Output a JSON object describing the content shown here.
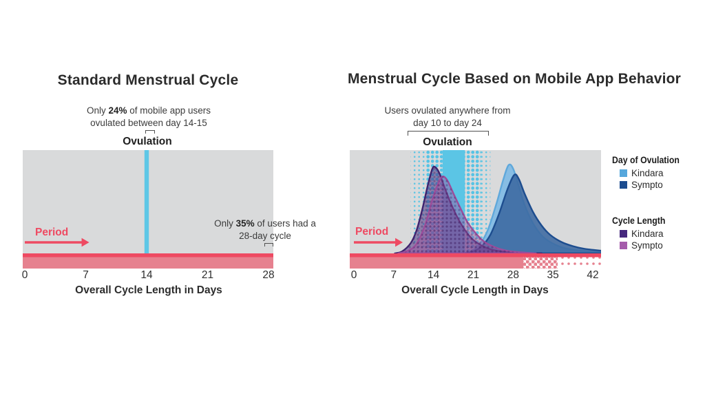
{
  "charts": {
    "left": {
      "title": "Standard Menstrual Cycle",
      "annotation": {
        "l1a": "Only ",
        "l1b": "24%",
        "l1c": " of mobile app users",
        "l2": "ovulated between day 14-15"
      },
      "ovulation_label": "Ovulation",
      "period_label": "Period",
      "note": {
        "l1a": "Only ",
        "l1b": "35%",
        "l1c": " of users had a",
        "l2": "28-day cycle"
      },
      "x_title": "Overall Cycle Length in Days"
    },
    "right": {
      "title": "Menstrual Cycle Based on Mobile App Behavior",
      "annotation": {
        "l1": "Users ovulated anywhere from",
        "l2": "day 10 to day 24"
      },
      "ovulation_label": "Ovulation",
      "period_label": "Period",
      "x_title": "Overall Cycle Length in Days"
    }
  },
  "legend": {
    "groups": [
      {
        "heading": "Day of Ovulation",
        "items": [
          {
            "label": "Kindara",
            "color": "#56a7dc"
          },
          {
            "label": "Sympto",
            "color": "#1d4d8f"
          }
        ]
      },
      {
        "heading": "Cycle Length",
        "items": [
          {
            "label": "Kindara",
            "color": "#46287d"
          },
          {
            "label": "Sympto",
            "color": "#a55cab"
          }
        ]
      }
    ]
  },
  "colors": {
    "plot_bg": "#d9dadb",
    "period_red": "#ee4a62",
    "period_pink": "#e6818f",
    "ovulation_cyan": "#5ec7e6",
    "ovulation_band_cyan": "#3fc0e6",
    "title_text": "#2b2b2b"
  },
  "chart_data": [
    {
      "type": "timeline",
      "title": "Standard Menstrual Cycle",
      "xlabel": "Overall Cycle Length in Days",
      "x_ticks": [
        0,
        7,
        14,
        21,
        28
      ],
      "xlim": [
        0,
        28.5
      ],
      "ovulation_day": 14,
      "period_days": [
        0,
        7.4
      ],
      "cycle_length_days": 28,
      "annotations": [
        "Only 24% of mobile app users ovulated between day 14-15",
        "Only 35% of users had a 28-day cycle"
      ]
    },
    {
      "type": "area",
      "title": "Menstrual Cycle Based on Mobile App Behavior",
      "xlabel": "Overall Cycle Length in Days",
      "x_ticks": [
        0,
        7,
        14,
        21,
        28,
        35,
        42
      ],
      "xlim": [
        0,
        43.5
      ],
      "ovulation_range_days": [
        10,
        24
      ],
      "period_days": [
        0,
        8.6
      ],
      "annotation": "Users ovulated anywhere from day 10 to day 24",
      "legend_position": "right",
      "series": [
        {
          "name": "Day of Ovulation - Kindara",
          "outline": "#5fa8db",
          "fill": "rgba(125,185,228,0.9)",
          "dots": false,
          "points": [
            [
              19,
              0
            ],
            [
              20.5,
              0.02
            ],
            [
              22,
              0.08
            ],
            [
              23.5,
              0.22
            ],
            [
              25,
              0.47
            ],
            [
              26.3,
              0.72
            ],
            [
              27.2,
              0.855
            ],
            [
              28,
              0.82
            ],
            [
              29,
              0.65
            ],
            [
              30,
              0.47
            ],
            [
              31.5,
              0.29
            ],
            [
              33,
              0.175
            ],
            [
              34.5,
              0.11
            ],
            [
              36.5,
              0.06
            ],
            [
              38.5,
              0.035
            ],
            [
              41,
              0.02
            ],
            [
              43.6,
              0.012
            ]
          ]
        },
        {
          "name": "Day of Ovulation - Sympto",
          "outline": "#1d4d8f",
          "fill": "rgba(60,105,160,0.88)",
          "dots": false,
          "points": [
            [
              19.5,
              0
            ],
            [
              21,
              0.02
            ],
            [
              22.5,
              0.07
            ],
            [
              24,
              0.18
            ],
            [
              25.5,
              0.38
            ],
            [
              27,
              0.62
            ],
            [
              28.2,
              0.76
            ],
            [
              29,
              0.72
            ],
            [
              30,
              0.58
            ],
            [
              31.5,
              0.4
            ],
            [
              33,
              0.27
            ],
            [
              34.5,
              0.18
            ],
            [
              36.5,
              0.11
            ],
            [
              38.5,
              0.07
            ],
            [
              40.5,
              0.045
            ],
            [
              43.6,
              0.025
            ]
          ]
        },
        {
          "name": "Cycle Length - Kindara",
          "outline": "#40236f",
          "fill": "rgba(72,42,124,0.52)",
          "dots": true,
          "points": [
            [
              7.2,
              0
            ],
            [
              8.5,
              0.02
            ],
            [
              10,
              0.1
            ],
            [
              11,
              0.22
            ],
            [
              12,
              0.42
            ],
            [
              13,
              0.66
            ],
            [
              13.8,
              0.82
            ],
            [
              14.3,
              0.835
            ],
            [
              15,
              0.78
            ],
            [
              16,
              0.63
            ],
            [
              17,
              0.49
            ],
            [
              18,
              0.37
            ],
            [
              19,
              0.27
            ],
            [
              20,
              0.19
            ],
            [
              21,
              0.13
            ],
            [
              22.5,
              0.075
            ],
            [
              24,
              0.04
            ],
            [
              26,
              0.018
            ],
            [
              28,
              0.008
            ],
            [
              30.5,
              0.002
            ],
            [
              33,
              0
            ]
          ]
        },
        {
          "name": "Cycle Length - Sympto",
          "outline": "#9c4d9b",
          "fill": "rgba(160,85,160,0.45)",
          "dots": true,
          "points": [
            [
              7.8,
              0
            ],
            [
              9.5,
              0.025
            ],
            [
              11,
              0.09
            ],
            [
              12.5,
              0.27
            ],
            [
              13.8,
              0.52
            ],
            [
              15,
              0.7
            ],
            [
              15.7,
              0.745
            ],
            [
              16.5,
              0.7
            ],
            [
              17.5,
              0.58
            ],
            [
              18.8,
              0.43
            ],
            [
              20,
              0.3
            ],
            [
              21.5,
              0.19
            ],
            [
              23,
              0.11
            ],
            [
              25,
              0.055
            ],
            [
              27,
              0.025
            ],
            [
              29.5,
              0.01
            ],
            [
              32,
              0
            ]
          ]
        }
      ]
    }
  ]
}
